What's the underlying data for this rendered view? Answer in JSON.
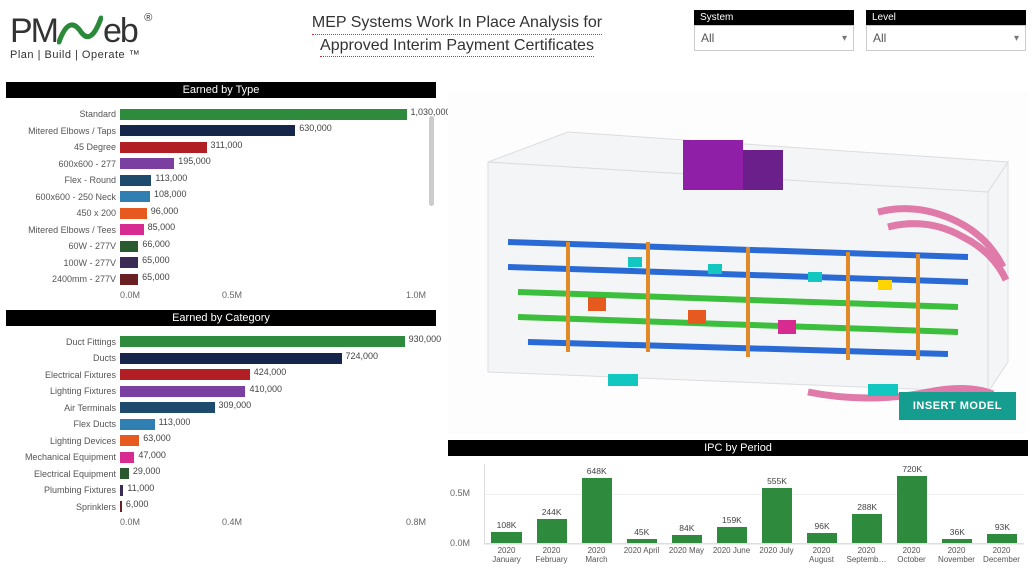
{
  "header": {
    "brand_pm": "PM",
    "brand_web": "eb",
    "brand_reg": "®",
    "tagline": "Plan | Build | Operate ™",
    "title_line1": "MEP Systems Work In Place Analysis for",
    "title_line2": "Approved Interim Payment Certificates",
    "swoosh_color": "#2a8a3a"
  },
  "filters": {
    "system": {
      "label": "System",
      "value": "All"
    },
    "level": {
      "label": "Level",
      "value": "All"
    }
  },
  "earned_by_type": {
    "title": "Earned by Type",
    "max": 1100000,
    "axis": [
      "0.0M",
      "0.5M",
      "1.0M"
    ],
    "rows": [
      {
        "label": "Standard",
        "value": 1030000,
        "display": "1,030,000",
        "color": "#2e8b3d"
      },
      {
        "label": "Mitered Elbows / Taps",
        "value": 630000,
        "display": "630,000",
        "color": "#16264a"
      },
      {
        "label": "45 Degree",
        "value": 311000,
        "display": "311,000",
        "color": "#b11f24"
      },
      {
        "label": "600x600 - 277",
        "value": 195000,
        "display": "195,000",
        "color": "#7a3fa0"
      },
      {
        "label": "Flex - Round",
        "value": 113000,
        "display": "113,000",
        "color": "#1e4a6d"
      },
      {
        "label": "600x600 - 250 Neck",
        "value": 108000,
        "display": "108,000",
        "color": "#2f7fb3"
      },
      {
        "label": "450 x 200",
        "value": 96000,
        "display": "96,000",
        "color": "#e65a1f"
      },
      {
        "label": "Mitered Elbows / Tees",
        "value": 85000,
        "display": "85,000",
        "color": "#d82b92"
      },
      {
        "label": "60W - 277V",
        "value": 66000,
        "display": "66,000",
        "color": "#2a5a2f"
      },
      {
        "label": "100W - 277V",
        "value": 65000,
        "display": "65,000",
        "color": "#3a2a55"
      },
      {
        "label": "2400mm - 277V",
        "value": 65000,
        "display": "65,000",
        "color": "#6a1f22"
      }
    ]
  },
  "earned_by_category": {
    "title": "Earned by Category",
    "max": 1000000,
    "axis": [
      "0.0M",
      "0.4M",
      "0.8M"
    ],
    "rows": [
      {
        "label": "Duct Fittings",
        "value": 930000,
        "display": "930,000",
        "color": "#2e8b3d"
      },
      {
        "label": "Ducts",
        "value": 724000,
        "display": "724,000",
        "color": "#16264a"
      },
      {
        "label": "Electrical Fixtures",
        "value": 424000,
        "display": "424,000",
        "color": "#b11f24"
      },
      {
        "label": "Lighting Fixtures",
        "value": 410000,
        "display": "410,000",
        "color": "#7a3fa0"
      },
      {
        "label": "Air Terminals",
        "value": 309000,
        "display": "309,000",
        "color": "#1e4a6d"
      },
      {
        "label": "Flex Ducts",
        "value": 113000,
        "display": "113,000",
        "color": "#2f7fb3"
      },
      {
        "label": "Lighting Devices",
        "value": 63000,
        "display": "63,000",
        "color": "#e65a1f"
      },
      {
        "label": "Mechanical Equipment",
        "value": 47000,
        "display": "47,000",
        "color": "#d82b92"
      },
      {
        "label": "Electrical Equipment",
        "value": 29000,
        "display": "29,000",
        "color": "#2a5a2f"
      },
      {
        "label": "Plumbing Fixtures",
        "value": 11000,
        "display": "11,000",
        "color": "#3a2a55"
      },
      {
        "label": "Sprinklers",
        "value": 6000,
        "display": "6,000",
        "color": "#6a1f22"
      }
    ]
  },
  "model_viewer": {
    "button_label": "INSERT MODEL",
    "button_bg": "#159e8f",
    "colors": {
      "box1": "#8e1fa6",
      "box2": "#6a1f8a",
      "duct_green": "#3cbf3c",
      "duct_blue": "#2a6ad4",
      "duct_pink": "#e07aa8",
      "duct_orange": "#e08a2a",
      "frame": "#dcdde0"
    }
  },
  "ipc_by_period": {
    "title": "IPC by Period",
    "y_max": 800000,
    "y_ticks": [
      {
        "v": 0,
        "label": "0.0M"
      },
      {
        "v": 500000,
        "label": "0.5M"
      }
    ],
    "bar_color": "#2e8b3d",
    "cols": [
      {
        "label1": "2020",
        "label2": "January",
        "value": 108000,
        "display": "108K"
      },
      {
        "label1": "2020",
        "label2": "February",
        "value": 244000,
        "display": "244K"
      },
      {
        "label1": "2020",
        "label2": "March",
        "value": 648000,
        "display": "648K"
      },
      {
        "label1": "2020",
        "label2": "April",
        "value": 45000,
        "display": "45K"
      },
      {
        "label1": "2020",
        "label2": "May",
        "value": 84000,
        "display": "84K"
      },
      {
        "label1": "2020",
        "label2": "June",
        "value": 159000,
        "display": "159K"
      },
      {
        "label1": "2020",
        "label2": "July",
        "value": 555000,
        "display": "555K"
      },
      {
        "label1": "2020",
        "label2": "August",
        "value": 96000,
        "display": "96K"
      },
      {
        "label1": "2020",
        "label2": "Septemb…",
        "value": 288000,
        "display": "288K"
      },
      {
        "label1": "2020",
        "label2": "October",
        "value": 720000,
        "display": "720K"
      },
      {
        "label1": "2020",
        "label2": "November",
        "value": 36000,
        "display": "36K"
      },
      {
        "label1": "2020",
        "label2": "December",
        "value": 93000,
        "display": "93K"
      }
    ]
  }
}
